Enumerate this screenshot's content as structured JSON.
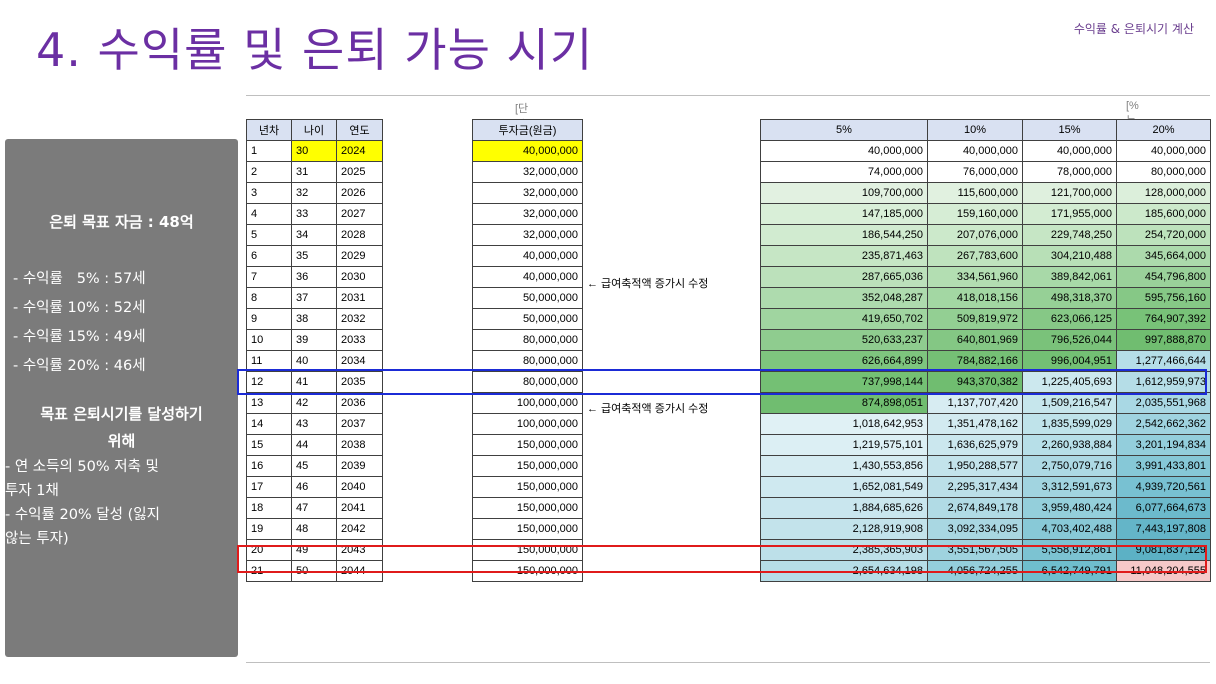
{
  "header": {
    "top_right": "수익률 & 은퇴시기 계산",
    "title": "4. 수익률 및 은퇴 가능 시기"
  },
  "side": {
    "target": "은퇴 목표 자금 : 48억",
    "rates": [
      "- 수익률   5% : 57세",
      "- 수익률 10% : 52세",
      "- 수익률 15% : 49세",
      "- 수익률 20% : 46세"
    ],
    "goal_title": [
      "목표 은퇴시기를 달성하기",
      "위해"
    ],
    "goal_items": [
      "- 연 소득의 50% 저축 및",
      "투자 1채",
      "- 수익률 20% 달성 (잃지",
      "않는 투자)"
    ]
  },
  "sheet": {
    "unit_left": "[단위 : 원]",
    "unit_right": "[%는 년 수익률]",
    "left_headers": [
      "년차",
      "나이",
      "연도"
    ],
    "invest_header": "투자금(원금)",
    "return_headers": [
      "5%",
      "10%",
      "15%",
      "20%"
    ],
    "note_text": "← 급여축적액 증가시 수정",
    "rows": [
      {
        "n": "1",
        "age": "30",
        "year": "2024",
        "invest": "40,000,000",
        "r": [
          "40,000,000",
          "40,000,000",
          "40,000,000",
          "40,000,000"
        ]
      },
      {
        "n": "2",
        "age": "31",
        "year": "2025",
        "invest": "32,000,000",
        "r": [
          "74,000,000",
          "76,000,000",
          "78,000,000",
          "80,000,000"
        ]
      },
      {
        "n": "3",
        "age": "32",
        "year": "2026",
        "invest": "32,000,000",
        "r": [
          "109,700,000",
          "115,600,000",
          "121,700,000",
          "128,000,000"
        ]
      },
      {
        "n": "4",
        "age": "33",
        "year": "2027",
        "invest": "32,000,000",
        "r": [
          "147,185,000",
          "159,160,000",
          "171,955,000",
          "185,600,000"
        ]
      },
      {
        "n": "5",
        "age": "34",
        "year": "2028",
        "invest": "32,000,000",
        "r": [
          "186,544,250",
          "207,076,000",
          "229,748,250",
          "254,720,000"
        ]
      },
      {
        "n": "6",
        "age": "35",
        "year": "2029",
        "invest": "40,000,000",
        "r": [
          "235,871,463",
          "267,783,600",
          "304,210,488",
          "345,664,000"
        ]
      },
      {
        "n": "7",
        "age": "36",
        "year": "2030",
        "invest": "40,000,000",
        "r": [
          "287,665,036",
          "334,561,960",
          "389,842,061",
          "454,796,800"
        ]
      },
      {
        "n": "8",
        "age": "37",
        "year": "2031",
        "invest": "50,000,000",
        "r": [
          "352,048,287",
          "418,018,156",
          "498,318,370",
          "595,756,160"
        ]
      },
      {
        "n": "9",
        "age": "38",
        "year": "2032",
        "invest": "50,000,000",
        "r": [
          "419,650,702",
          "509,819,972",
          "623,066,125",
          "764,907,392"
        ]
      },
      {
        "n": "10",
        "age": "39",
        "year": "2033",
        "invest": "80,000,000",
        "r": [
          "520,633,237",
          "640,801,969",
          "796,526,044",
          "997,888,870"
        ]
      },
      {
        "n": "11",
        "age": "40",
        "year": "2034",
        "invest": "80,000,000",
        "r": [
          "626,664,899",
          "784,882,166",
          "996,004,951",
          "1,277,466,644"
        ]
      },
      {
        "n": "12",
        "age": "41",
        "year": "2035",
        "invest": "80,000,000",
        "r": [
          "737,998,144",
          "943,370,382",
          "1,225,405,693",
          "1,612,959,973"
        ]
      },
      {
        "n": "13",
        "age": "42",
        "year": "2036",
        "invest": "100,000,000",
        "r": [
          "874,898,051",
          "1,137,707,420",
          "1,509,216,547",
          "2,035,551,968"
        ]
      },
      {
        "n": "14",
        "age": "43",
        "year": "2037",
        "invest": "100,000,000",
        "r": [
          "1,018,642,953",
          "1,351,478,162",
          "1,835,599,029",
          "2,542,662,362"
        ]
      },
      {
        "n": "15",
        "age": "44",
        "year": "2038",
        "invest": "150,000,000",
        "r": [
          "1,219,575,101",
          "1,636,625,979",
          "2,260,938,884",
          "3,201,194,834"
        ]
      },
      {
        "n": "16",
        "age": "45",
        "year": "2039",
        "invest": "150,000,000",
        "r": [
          "1,430,553,856",
          "1,950,288,577",
          "2,750,079,716",
          "3,991,433,801"
        ]
      },
      {
        "n": "17",
        "age": "46",
        "year": "2040",
        "invest": "150,000,000",
        "r": [
          "1,652,081,549",
          "2,295,317,434",
          "3,312,591,673",
          "4,939,720,561"
        ]
      },
      {
        "n": "18",
        "age": "47",
        "year": "2041",
        "invest": "150,000,000",
        "r": [
          "1,884,685,626",
          "2,674,849,178",
          "3,959,480,424",
          "6,077,664,673"
        ]
      },
      {
        "n": "19",
        "age": "48",
        "year": "2042",
        "invest": "150,000,000",
        "r": [
          "2,128,919,908",
          "3,092,334,095",
          "4,703,402,488",
          "7,443,197,808"
        ]
      },
      {
        "n": "20",
        "age": "49",
        "year": "2043",
        "invest": "150,000,000",
        "r": [
          "2,385,365,903",
          "3,551,567,505",
          "5,558,912,861",
          "9,081,837,129"
        ]
      },
      {
        "n": "21",
        "age": "50",
        "year": "2044",
        "invest": "150,000,000",
        "r": [
          "2,654,634,198",
          "4,056,724,255",
          "6,542,749,791",
          "11,048,204,555"
        ]
      }
    ],
    "colors": {
      "row_colors": [
        [
          "#ffffff",
          "#ffffff",
          "#ffffff",
          "#ffffff"
        ],
        [
          "#ffffff",
          "#ffffff",
          "#ffffff",
          "#ffffff"
        ],
        [
          "#e2f1e1",
          "#e1f1e0",
          "#dff0de",
          "#dcefdb"
        ],
        [
          "#d9efd8",
          "#d6edd5",
          "#d3ecd2",
          "#cce9cb"
        ],
        [
          "#d1ebd0",
          "#cce9cb",
          "#c6e6c5",
          "#bde2bc"
        ],
        [
          "#c6e6c5",
          "#bfe3be",
          "#b8e0b7",
          "#acdaac"
        ],
        [
          "#bce1bb",
          "#b3deb2",
          "#a8d9a8",
          "#9ad19a"
        ],
        [
          "#aedbae",
          "#a3d7a3",
          "#96d096",
          "#86c886"
        ],
        [
          "#a0d5a0",
          "#93cf93",
          "#86c886",
          "#78c278"
        ],
        [
          "#8fcc8f",
          "#84c784",
          "#7ac27a",
          "#70bd70"
        ],
        [
          "#7ec57e",
          "#75c075",
          "#73c074",
          "#b5dee8"
        ],
        [
          "#74c074",
          "#70bd70",
          "#cce8ee",
          "#b5dde7"
        ],
        [
          "#70bd70",
          "#d7ecf2",
          "#c6e6ec",
          "#a9d8e4"
        ],
        [
          "#e0f1f5",
          "#d2eaf0",
          "#bfe3ea",
          "#9fd3e0"
        ],
        [
          "#dcefF4",
          "#cbe7ee",
          "#b7dfe8",
          "#93cedc"
        ],
        [
          "#d6ecf2",
          "#c3e3eb",
          "#add9e4",
          "#86c8d7"
        ],
        [
          "#cfe9f0",
          "#bbdfe8",
          "#a1d4e0",
          "#78c1d2"
        ],
        [
          "#c9e6ee",
          "#b1dbe5",
          "#94cfdb",
          "#6cbacc"
        ],
        [
          "#c3e3eb",
          "#a9d7e2",
          "#88c9d7",
          "#64b5c8"
        ],
        [
          "#bde0e9",
          "#9fd3df",
          "#7cc3d2",
          "#5cb1c5"
        ],
        [
          "#b6dde7",
          "#94cedc",
          "#6fbecd",
          "#f6c9c9"
        ]
      ]
    }
  }
}
